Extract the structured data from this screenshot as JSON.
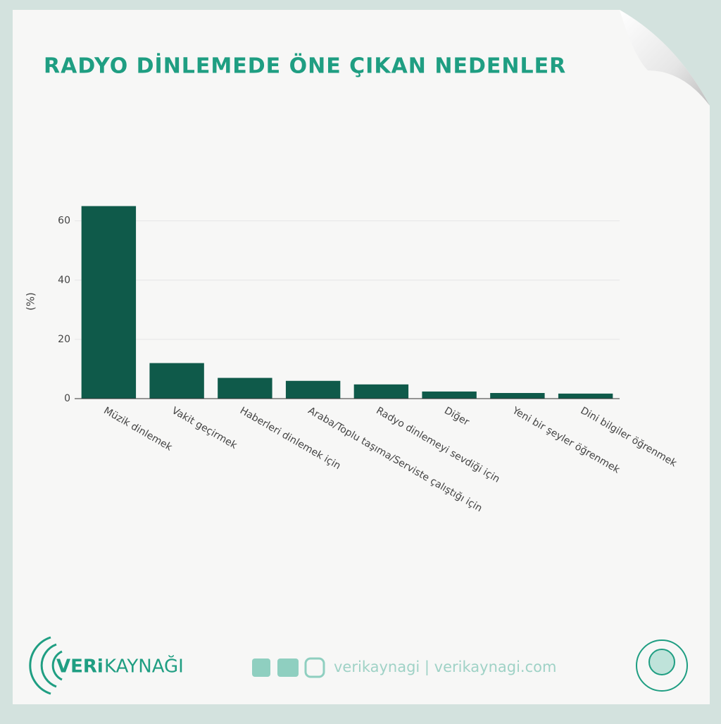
{
  "chart_data": {
    "type": "bar",
    "title": "RADYO DİNLEMEDE ÖNE ÇIKAN NEDENLER",
    "y_label": "(%)",
    "categories": [
      "Müzik dinlemek",
      "Vakit geçirmek",
      "Haberleri dinlemek için",
      "Araba/Toplu taşıma/Serviste çalıştığı için",
      "Radyo dinlemeyi sevdiği için",
      "Diğer",
      "Yeni bir şeyler öğrenmek",
      "Dini bilgiler öğrenmek"
    ],
    "values": [
      65,
      12,
      7,
      6,
      4.8,
      2.4,
      1.9,
      1.7
    ],
    "color": "#0f5a4a",
    "ylim": [
      0,
      68
    ],
    "yticks": [
      0,
      20,
      40,
      60
    ],
    "grid": true
  },
  "footer": {
    "logo_bold": "VERi",
    "logo_light": "KAYNAĞI",
    "social": "verikaynagi | verikaynagi.com"
  }
}
